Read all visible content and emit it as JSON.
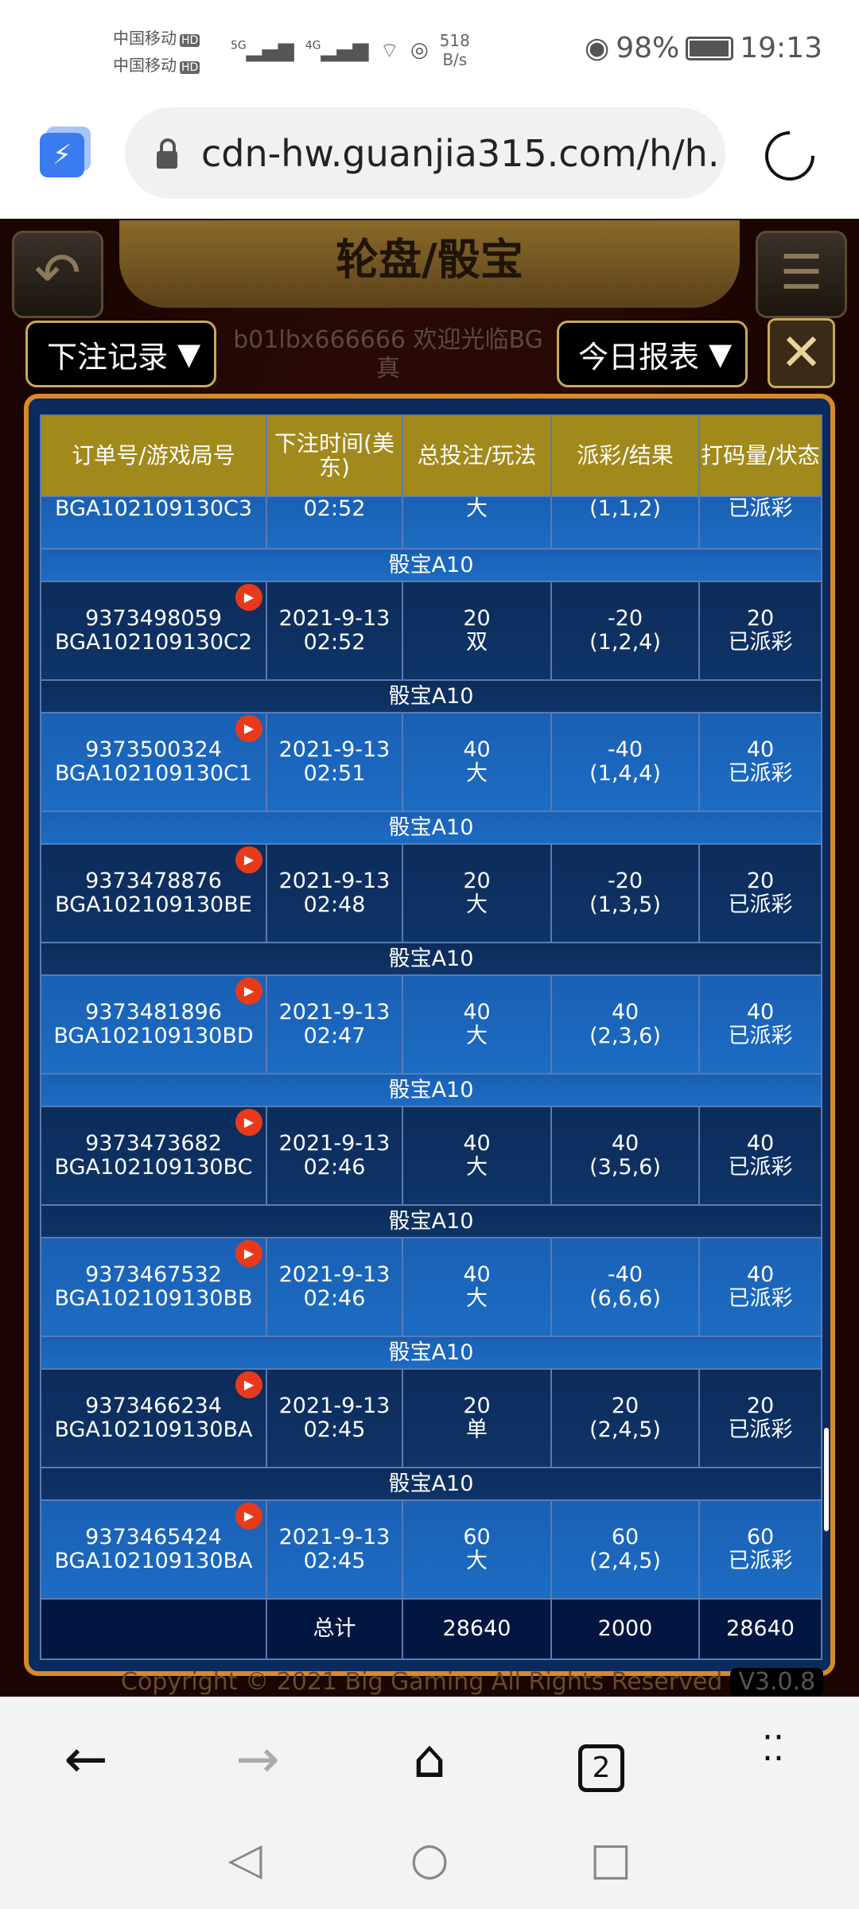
{
  "status_bar": {
    "carrier1": "中国移动",
    "carrier2": "中国移动",
    "hd": "HD",
    "net1": "5G",
    "net2": "4G",
    "speed_value": "518",
    "speed_unit": "B/s",
    "battery": "98%",
    "battery_level": 0.98,
    "time": "19:13"
  },
  "browser": {
    "url": "cdn-hw.guanjia315.com/h/h.",
    "tab_count": "2"
  },
  "game": {
    "title": "轮盘/骰宝",
    "bet_record_dropdown": "下注记录",
    "report_dropdown": "今日报表",
    "welcome": "b01lbx666666 欢迎光临BG真",
    "copyright": "Copyright © 2021 Big Gaming All Rights Reserved",
    "version": "V3.0.8"
  },
  "table": {
    "headers": [
      "订单号/游戏局号",
      "下注时间(美东)",
      "总投注/玩法",
      "派彩/结果",
      "打码量/状态"
    ],
    "partial_row": {
      "round": "BGA102109130C3",
      "time": "02:52",
      "play": "大",
      "result": "(1,1,2)",
      "status": "已派彩"
    },
    "game_label": "骰宝A10",
    "rows": [
      {
        "order": "9373498059",
        "round": "BGA102109130C2",
        "date": "2021-9-13",
        "time": "02:52",
        "bet": "20",
        "play": "双",
        "payout": "-20",
        "result": "(1,2,4)",
        "turnover": "20",
        "status": "已派彩"
      },
      {
        "order": "9373500324",
        "round": "BGA102109130C1",
        "date": "2021-9-13",
        "time": "02:51",
        "bet": "40",
        "play": "大",
        "payout": "-40",
        "result": "(1,4,4)",
        "turnover": "40",
        "status": "已派彩"
      },
      {
        "order": "9373478876",
        "round": "BGA102109130BE",
        "date": "2021-9-13",
        "time": "02:48",
        "bet": "20",
        "play": "大",
        "payout": "-20",
        "result": "(1,3,5)",
        "turnover": "20",
        "status": "已派彩"
      },
      {
        "order": "9373481896",
        "round": "BGA102109130BD",
        "date": "2021-9-13",
        "time": "02:47",
        "bet": "40",
        "play": "大",
        "payout": "40",
        "result": "(2,3,6)",
        "turnover": "40",
        "status": "已派彩"
      },
      {
        "order": "9373473682",
        "round": "BGA102109130BC",
        "date": "2021-9-13",
        "time": "02:46",
        "bet": "40",
        "play": "大",
        "payout": "40",
        "result": "(3,5,6)",
        "turnover": "40",
        "status": "已派彩"
      },
      {
        "order": "9373467532",
        "round": "BGA102109130BB",
        "date": "2021-9-13",
        "time": "02:46",
        "bet": "40",
        "play": "大",
        "payout": "-40",
        "result": "(6,6,6)",
        "turnover": "40",
        "status": "已派彩"
      },
      {
        "order": "9373466234",
        "round": "BGA102109130BA",
        "date": "2021-9-13",
        "time": "02:45",
        "bet": "20",
        "play": "单",
        "payout": "20",
        "result": "(2,4,5)",
        "turnover": "20",
        "status": "已派彩"
      },
      {
        "order": "9373465424",
        "round": "BGA102109130BA",
        "date": "2021-9-13",
        "time": "02:45",
        "bet": "60",
        "play": "大",
        "payout": "60",
        "result": "(2,4,5)",
        "turnover": "60",
        "status": "已派彩"
      }
    ],
    "total": {
      "label": "总计",
      "bet": "28640",
      "payout": "2000",
      "turnover": "28640"
    }
  },
  "colors": {
    "header_gold": "#a2891c",
    "row_bright": "#1a64bc",
    "row_dark": "#0d2f60",
    "frame": "#d68a2a",
    "play_badge": "#e83a1a"
  }
}
